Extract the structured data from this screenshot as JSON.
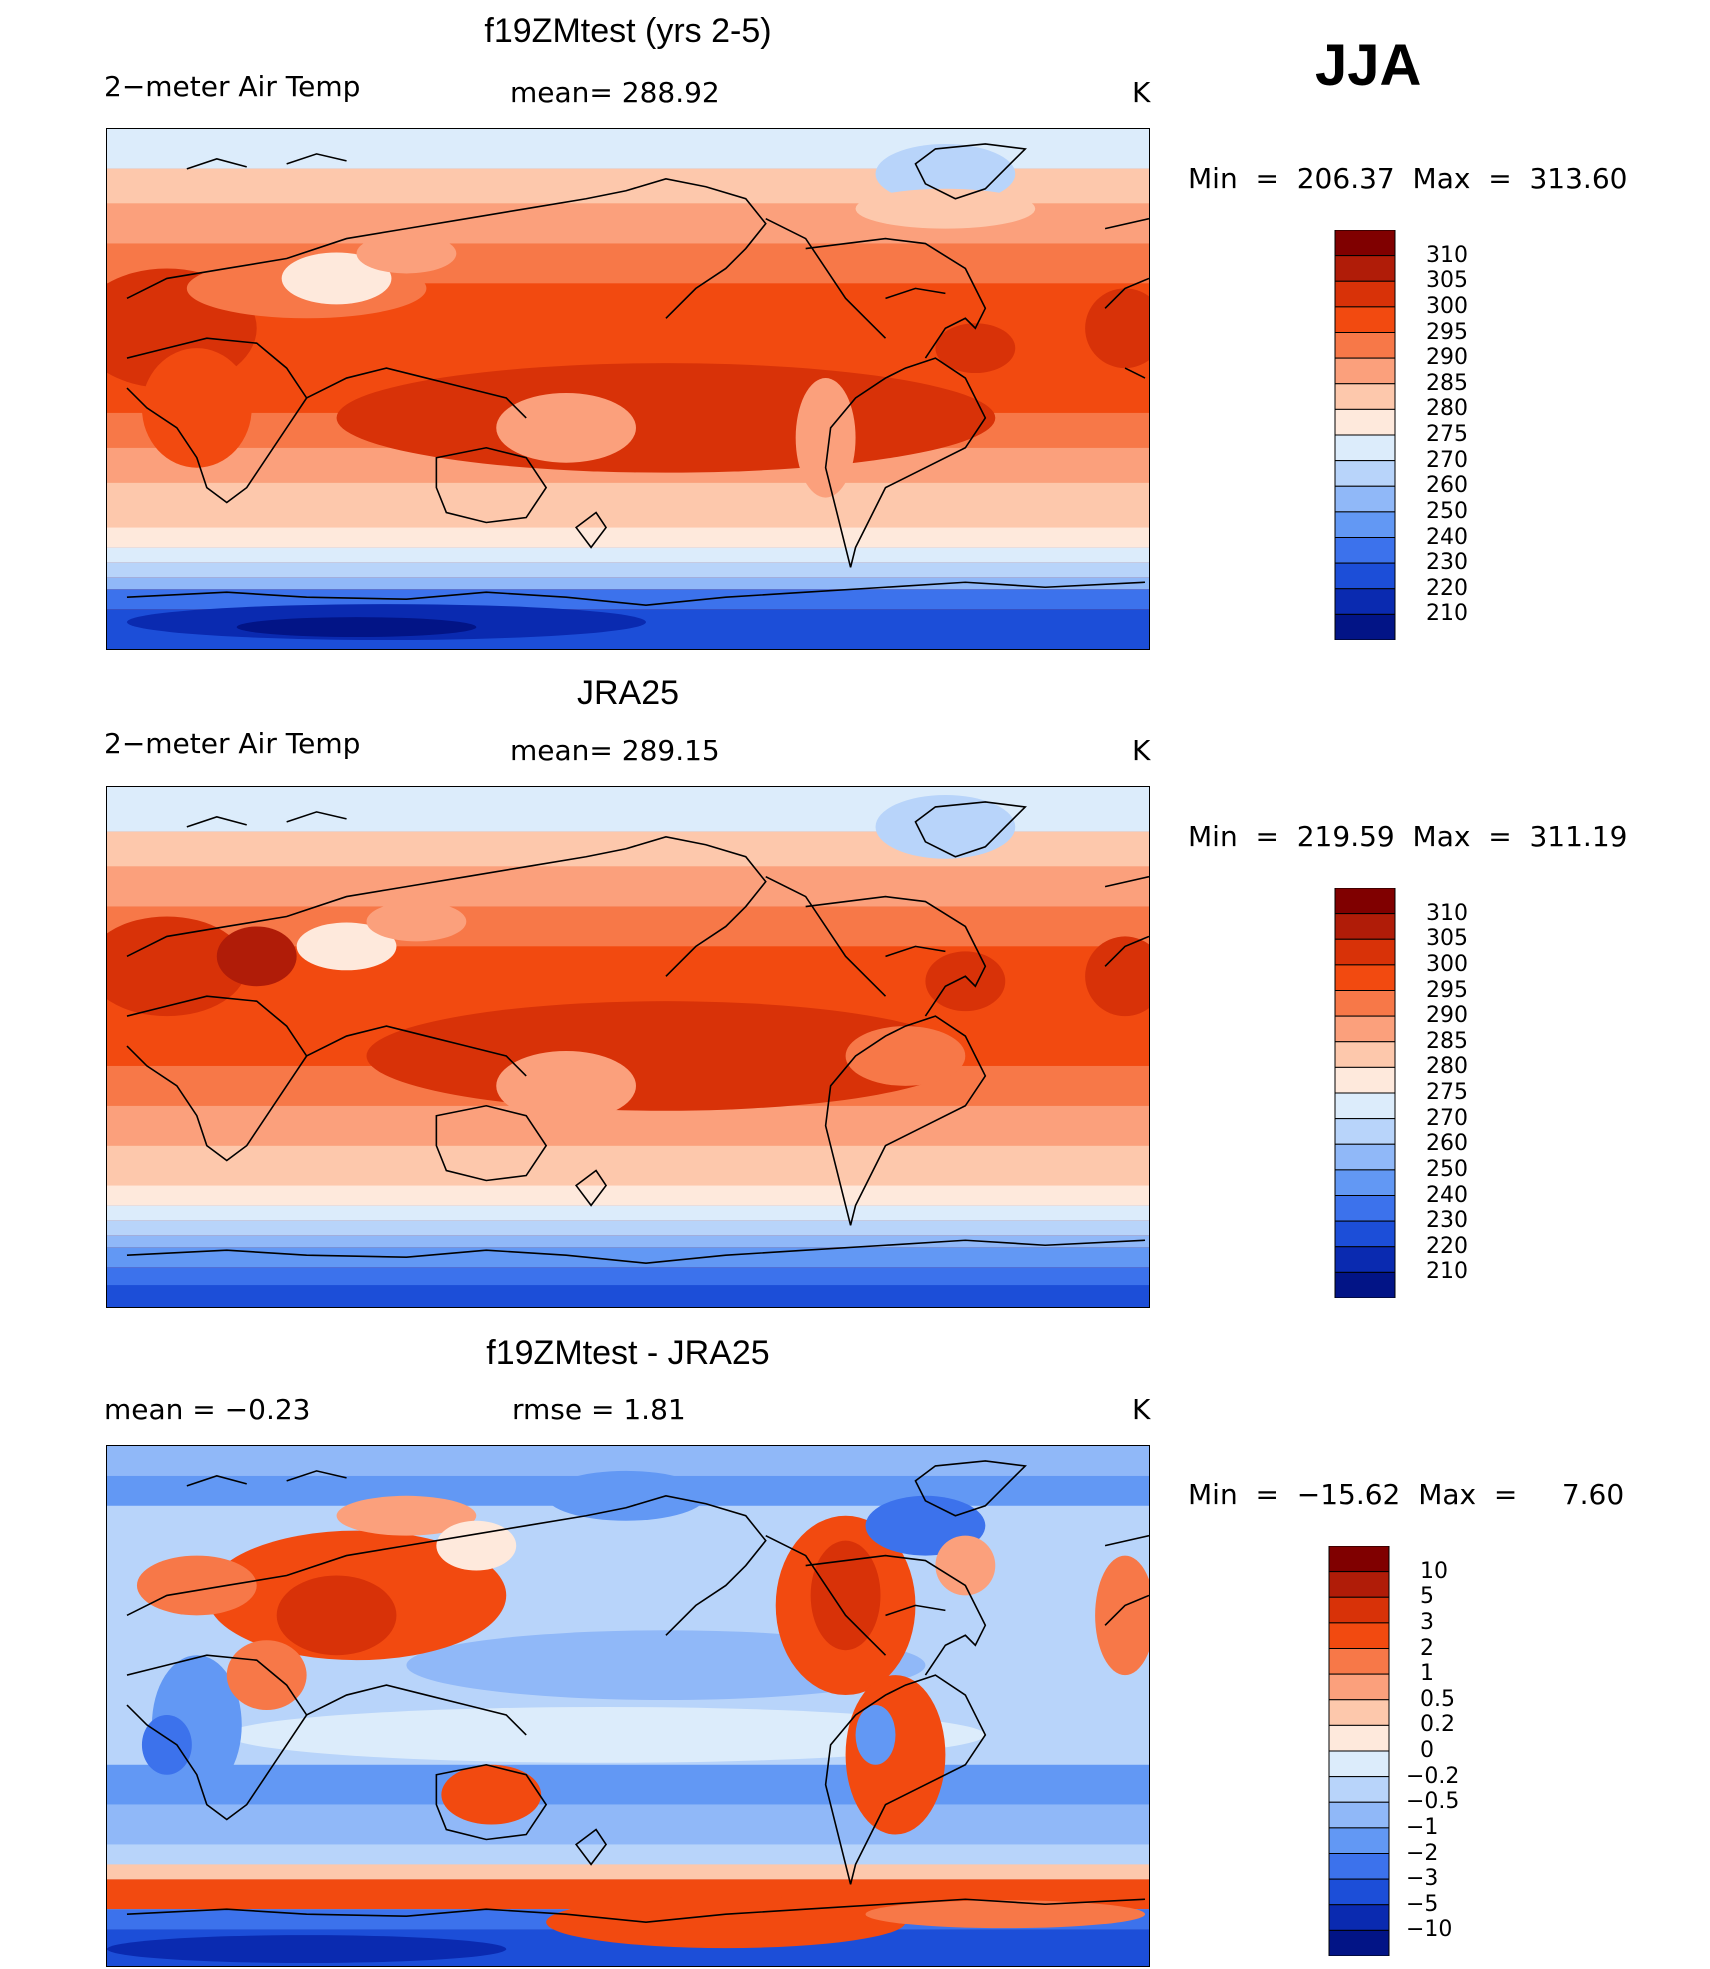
{
  "season": "JJA",
  "panels": [
    {
      "title": "f19ZMtest (yrs 2-5)",
      "left_label": "2−meter Air Temp",
      "center_label": "mean=  288.92",
      "units": "K",
      "min_label": "Min  =  206.37",
      "max_label": "Max  =  313.60"
    },
    {
      "title": "JRA25",
      "left_label": "2−meter Air Temp",
      "center_label": "mean=  289.15",
      "units": "K",
      "min_label": "Min  =  219.59",
      "max_label": "Max  =  311.19"
    },
    {
      "title": "f19ZMtest - JRA25",
      "left_label": "mean  =     −0.23",
      "center_label": "rmse  =     1.81",
      "units": "K",
      "min_label": "Min  =  −15.62",
      "max_label": "Max  =     7.60"
    }
  ],
  "chart_data": [
    {
      "type": "heatmap",
      "title": "f19ZMtest (yrs 2-5)",
      "variable": "2−meter Air Temp",
      "units": "K",
      "mean": 288.92,
      "min": 206.37,
      "max": 313.6,
      "colorbar_levels": [
        "310",
        "305",
        "300",
        "295",
        "290",
        "285",
        "280",
        "275",
        "270",
        "260",
        "250",
        "240",
        "230",
        "220",
        "210"
      ],
      "colorbar_colors": [
        "#800000",
        "#b01c08",
        "#d83208",
        "#f24a10",
        "#f77848",
        "#fba07c",
        "#fdc8ac",
        "#fee9dc",
        "#dcecfb",
        "#b8d4fa",
        "#90b8f8",
        "#6298f4",
        "#3c72ec",
        "#1c4ed8",
        "#0a2ab0",
        "#021486"
      ]
    },
    {
      "type": "heatmap",
      "title": "JRA25",
      "variable": "2−meter Air Temp",
      "units": "K",
      "mean": 289.15,
      "min": 219.59,
      "max": 311.19,
      "colorbar_levels": [
        "310",
        "305",
        "300",
        "295",
        "290",
        "285",
        "280",
        "275",
        "270",
        "260",
        "250",
        "240",
        "230",
        "220",
        "210"
      ],
      "colorbar_colors": [
        "#800000",
        "#b01c08",
        "#d83208",
        "#f24a10",
        "#f77848",
        "#fba07c",
        "#fdc8ac",
        "#fee9dc",
        "#dcecfb",
        "#b8d4fa",
        "#90b8f8",
        "#6298f4",
        "#3c72ec",
        "#1c4ed8",
        "#0a2ab0",
        "#021486"
      ]
    },
    {
      "type": "heatmap",
      "title": "f19ZMtest - JRA25",
      "units": "K",
      "mean": -0.23,
      "rmse": 1.81,
      "min": -15.62,
      "max": 7.6,
      "colorbar_levels": [
        "10",
        "5",
        "3",
        "2",
        "1",
        "0.5",
        "0.2",
        "0",
        "−0.2",
        "−0.5",
        "−1",
        "−2",
        "−3",
        "−5",
        "−10"
      ],
      "colorbar_colors": [
        "#800000",
        "#b01c08",
        "#d83208",
        "#f24a10",
        "#f77848",
        "#fba07c",
        "#fdc8ac",
        "#fee9dc",
        "#dcecfb",
        "#b8d4fa",
        "#90b8f8",
        "#6298f4",
        "#3c72ec",
        "#1c4ed8",
        "#0a2ab0",
        "#021486"
      ]
    }
  ]
}
